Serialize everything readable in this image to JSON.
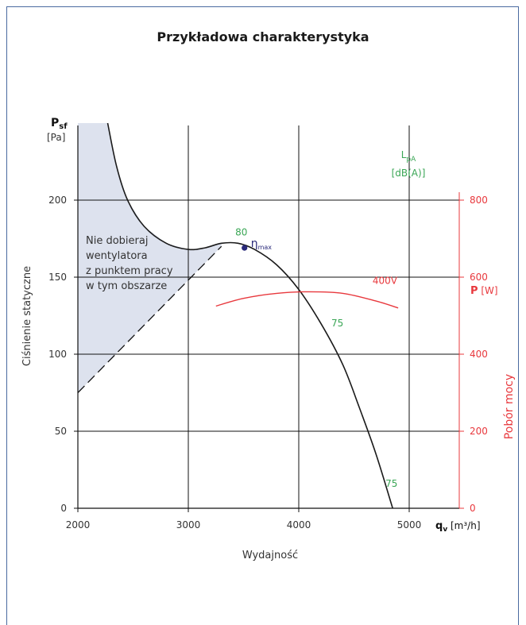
{
  "title": "Przykładowa charakterystyka",
  "chart_data": {
    "type": "line",
    "title": "Przykładowa charakterystyka",
    "xlabel": "Wydajność",
    "ylabel": "Ciśnienie statyczne",
    "y2label": "Pobór mocy",
    "x_symbol": "q",
    "x_symbol_sub": "v",
    "x_unit": "[m³/h]",
    "y_symbol": "P",
    "y_symbol_sub": "sf",
    "y_unit": "[Pa]",
    "y2_symbol": "P",
    "y2_unit": "[W]",
    "lpa_label": "L",
    "lpa_sub": "pA",
    "lpa_unit": "[dB(A)]",
    "xlim": [
      2000,
      5500
    ],
    "ylim": [
      0,
      250
    ],
    "y2lim": [
      0,
      1000
    ],
    "x_ticks": [
      "2000",
      "3000",
      "4000",
      "5000"
    ],
    "y_ticks": [
      "0",
      "50",
      "100",
      "150",
      "200"
    ],
    "y2_ticks": [
      "0",
      "200",
      "400",
      "600",
      "800"
    ],
    "grid": true,
    "colors": {
      "pressure": "#1a1a1a",
      "power": "#e8383d",
      "noise": "#3aa655",
      "eta": "#2a2a7a",
      "region": "#dde2ee"
    },
    "series": [
      {
        "name": "",
        "axis": "left",
        "points": [
          [
            2270,
            250
          ],
          [
            2350,
            222
          ],
          [
            2450,
            200
          ],
          [
            2600,
            183
          ],
          [
            2800,
            172
          ],
          [
            3000,
            168
          ],
          [
            3150,
            169
          ],
          [
            3300,
            172
          ],
          [
            3450,
            172
          ],
          [
            3600,
            168
          ],
          [
            3800,
            158
          ],
          [
            4000,
            142
          ],
          [
            4200,
            120
          ],
          [
            4400,
            93
          ],
          [
            4550,
            65
          ],
          [
            4700,
            35
          ],
          [
            4850,
            0
          ]
        ]
      },
      {
        "name": "400V",
        "axis": "right",
        "points": [
          [
            3250,
            525
          ],
          [
            3500,
            545
          ],
          [
            3800,
            558
          ],
          [
            4100,
            562
          ],
          [
            4400,
            558
          ],
          [
            4700,
            538
          ],
          [
            4900,
            520
          ]
        ]
      }
    ],
    "boundary_line": [
      [
        2000,
        75
      ],
      [
        3300,
        170
      ]
    ],
    "unrecommended_region_text": [
      "Nie dobieraj",
      "wentylatora",
      "z punktem pracy",
      "w tym obszarze"
    ],
    "annotations": [
      {
        "text": "80",
        "x": 3480,
        "y": 177,
        "kind": "noise"
      },
      {
        "text": "75",
        "x": 4350,
        "y": 118,
        "kind": "noise"
      },
      {
        "text": "75",
        "x": 4840,
        "y": 14,
        "kind": "noise"
      },
      {
        "text": "400V",
        "x": 4780,
        "y": 582,
        "kind": "power"
      }
    ],
    "eta_max": {
      "symbol": "η",
      "sub": "max",
      "x": 3480,
      "y": 169
    }
  }
}
